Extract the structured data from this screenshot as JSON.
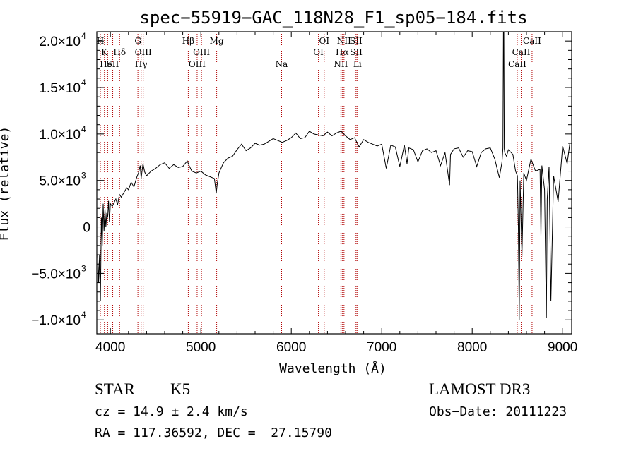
{
  "chart_data": {
    "type": "line",
    "title": "spec−55919−GAC_118N28_F1_sp05−184.fits",
    "xlabel": "Wavelength (Å)",
    "ylabel": "Flux (relative)",
    "xlim": [
      3850,
      9100
    ],
    "ylim": [
      -11500,
      21000
    ],
    "x_ticks": [
      {
        "value": 4000,
        "label": "4000"
      },
      {
        "value": 5000,
        "label": "5000"
      },
      {
        "value": 6000,
        "label": "6000"
      },
      {
        "value": 7000,
        "label": "7000"
      },
      {
        "value": 8000,
        "label": "8000"
      },
      {
        "value": 9000,
        "label": "9000"
      }
    ],
    "y_ticks": [
      {
        "value": 20000,
        "mant": "2.0×10",
        "exp": "4"
      },
      {
        "value": 15000,
        "mant": "1.5×10",
        "exp": "4"
      },
      {
        "value": 10000,
        "mant": "1.0×10",
        "exp": "4"
      },
      {
        "value": 5000,
        "mant": "5.0×10",
        "exp": "3"
      },
      {
        "value": 0,
        "mant": "0",
        "exp": ""
      },
      {
        "value": -5000,
        "mant": "−5.0×10",
        "exp": "3"
      },
      {
        "value": -10000,
        "mant": "−1.0×10",
        "exp": "4"
      }
    ],
    "series": [
      {
        "name": "spectrum",
        "x": [
          3860,
          3870,
          3880,
          3890,
          3900,
          3910,
          3920,
          3930,
          3940,
          3950,
          3960,
          3970,
          3980,
          3990,
          4000,
          4020,
          4040,
          4060,
          4080,
          4100,
          4120,
          4150,
          4180,
          4200,
          4230,
          4260,
          4290,
          4310,
          4330,
          4340,
          4360,
          4380,
          4400,
          4450,
          4500,
          4550,
          4600,
          4650,
          4700,
          4750,
          4800,
          4850,
          4870,
          4900,
          4950,
          5000,
          5050,
          5100,
          5150,
          5170,
          5180,
          5200,
          5250,
          5300,
          5350,
          5400,
          5450,
          5500,
          5550,
          5600,
          5650,
          5700,
          5750,
          5800,
          5850,
          5900,
          5950,
          6000,
          6050,
          6100,
          6150,
          6200,
          6250,
          6300,
          6350,
          6400,
          6450,
          6500,
          6550,
          6600,
          6650,
          6700,
          6750,
          6800,
          6850,
          6900,
          6950,
          7000,
          7050,
          7100,
          7150,
          7200,
          7250,
          7280,
          7300,
          7350,
          7400,
          7450,
          7500,
          7550,
          7600,
          7650,
          7700,
          7750,
          7760,
          7800,
          7850,
          7900,
          7950,
          8000,
          8050,
          8100,
          8150,
          8200,
          8250,
          8300,
          8330,
          8340,
          8345,
          8350,
          8355,
          8360,
          8380,
          8400,
          8450,
          8480,
          8500,
          8510,
          8520,
          8530,
          8550,
          8570,
          8600,
          8650,
          8700,
          8750,
          8760,
          8770,
          8800,
          8820,
          8830,
          8850,
          8870,
          8900,
          8950,
          9000,
          9050,
          9080
        ],
        "values": [
          -3000,
          -6000,
          -3000,
          -8000,
          1000,
          -2000,
          2500,
          -500,
          2000,
          0,
          1500,
          1000,
          2800,
          500,
          2500,
          2200,
          2600,
          3000,
          2400,
          3500,
          3200,
          3700,
          4200,
          4000,
          4800,
          4300,
          5300,
          5800,
          6600,
          5200,
          6800,
          5900,
          5500,
          6000,
          6300,
          6700,
          6900,
          6300,
          6700,
          6400,
          6500,
          7100,
          6600,
          6000,
          5800,
          6000,
          5600,
          5400,
          5200,
          3600,
          4500,
          5800,
          6900,
          7400,
          7600,
          8300,
          8900,
          8200,
          8500,
          9000,
          8800,
          8900,
          9200,
          9500,
          9300,
          9100,
          9300,
          9600,
          10100,
          9500,
          9600,
          10300,
          10000,
          9900,
          9800,
          10200,
          9800,
          10100,
          10300,
          9800,
          9400,
          9600,
          8600,
          9400,
          9100,
          8900,
          8700,
          8900,
          6300,
          8800,
          8600,
          6500,
          8800,
          6800,
          8500,
          8300,
          7000,
          8200,
          8400,
          8000,
          8200,
          6600,
          8000,
          4500,
          7800,
          8400,
          8500,
          7500,
          8200,
          8100,
          6500,
          8000,
          8400,
          8500,
          7300,
          5300,
          7000,
          8500,
          21000,
          21000,
          8400,
          8000,
          7600,
          8300,
          7800,
          6000,
          5500,
          200,
          -10000,
          5000,
          -3200,
          5800,
          5000,
          7300,
          6000,
          6200,
          -1000,
          6600,
          4000,
          -9800,
          3000,
          6500,
          -8000,
          5500,
          2700,
          8700,
          6800,
          9000
        ]
      }
    ],
    "lines": [
      {
        "wl": 3889,
        "name": "H",
        "row": 1
      },
      {
        "wl": 3934,
        "name": "K",
        "row": 2
      },
      {
        "wl": 3970,
        "name": "HeI",
        "row": 3
      },
      {
        "wl": 4026,
        "name": "SII",
        "row": 3
      },
      {
        "wl": 4102,
        "name": "Hδ",
        "row": 2
      },
      {
        "wl": 4304,
        "name": "G",
        "row": 1
      },
      {
        "wl": 4340,
        "name": "Hγ",
        "row": 3
      },
      {
        "wl": 4363,
        "name": "OIII",
        "row": 2
      },
      {
        "wl": 4861,
        "name": "Hβ",
        "row": 1
      },
      {
        "wl": 4959,
        "name": "OIII",
        "row": 3
      },
      {
        "wl": 5007,
        "name": "OIII",
        "row": 2
      },
      {
        "wl": 5175,
        "name": "Mg",
        "row": 1
      },
      {
        "wl": 5893,
        "name": "Na",
        "row": 3
      },
      {
        "wl": 6300,
        "name": "OI",
        "row": 2
      },
      {
        "wl": 6364,
        "name": "OI",
        "row": 1
      },
      {
        "wl": 6548,
        "name": "NII",
        "row": 3
      },
      {
        "wl": 6563,
        "name": "Hα",
        "row": 2
      },
      {
        "wl": 6583,
        "name": "NII",
        "row": 1
      },
      {
        "wl": 6716,
        "name": "SII",
        "row": 1
      },
      {
        "wl": 6717,
        "name": "SII",
        "row": 2
      },
      {
        "wl": 6731,
        "name": "Li",
        "row": 3
      },
      {
        "wl": 8498,
        "name": "CaII",
        "row": 3
      },
      {
        "wl": 8542,
        "name": "CaII",
        "row": 2
      },
      {
        "wl": 8662,
        "name": "CaII",
        "row": 1
      }
    ]
  },
  "info": {
    "class": "STAR",
    "subclass": "K5",
    "survey": "LAMOST DR3",
    "cz": "cz = 14.9 ± 2.4 km/s",
    "obs_date": "Obs−Date: 20111223",
    "coords": "RA = 117.36592, DEC =  27.15790"
  },
  "colors": {
    "line_marker": "#b00000",
    "spectrum": "#000000"
  }
}
